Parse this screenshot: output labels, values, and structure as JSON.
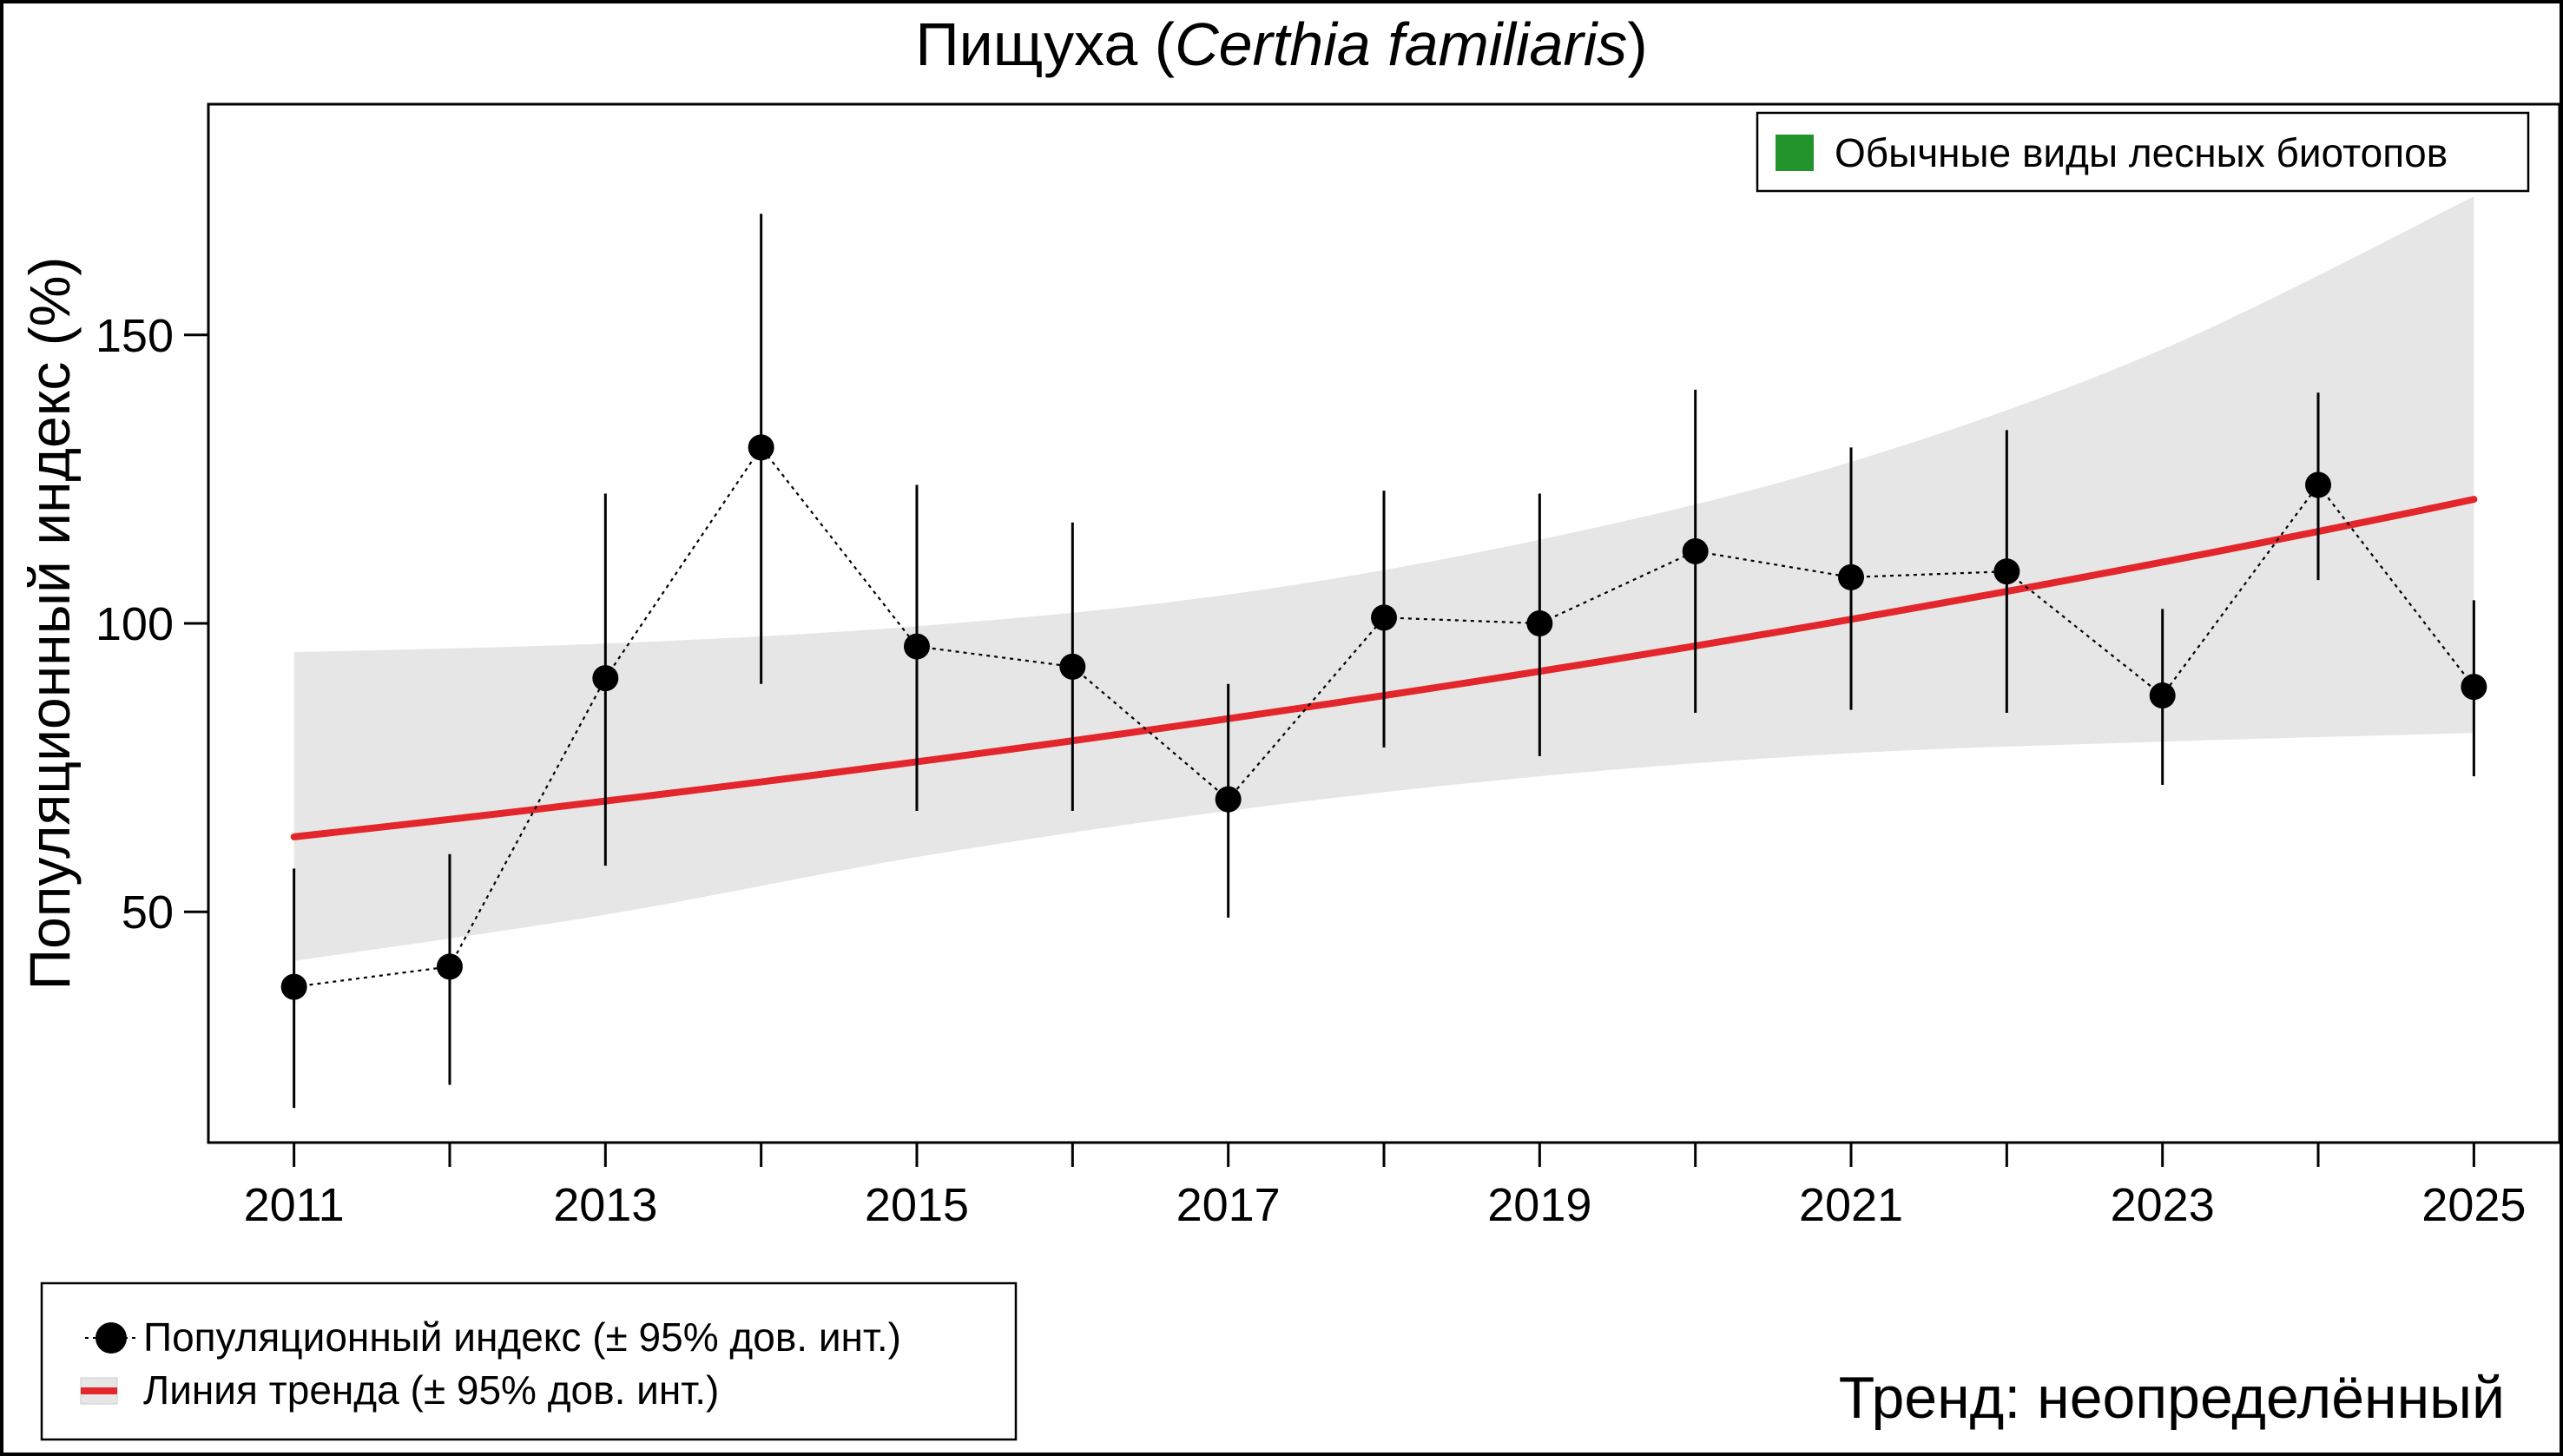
{
  "chart_data": {
    "type": "line",
    "title_prefix": "Пищуха (",
    "title_species": "Certhia familiaris",
    "title_suffix": ")",
    "xlabel": "",
    "ylabel": "Популяционный индекс (%)",
    "xlim": [
      2010.45,
      2025.55
    ],
    "ylim": [
      10,
      190
    ],
    "x_ticks": [
      2011,
      2012,
      2013,
      2014,
      2015,
      2016,
      2017,
      2018,
      2019,
      2020,
      2021,
      2022,
      2023,
      2024,
      2025
    ],
    "x_tick_labels": [
      "2011",
      "",
      "2013",
      "",
      "2015",
      "",
      "2017",
      "",
      "2019",
      "",
      "2021",
      "",
      "2023",
      "",
      "2025"
    ],
    "y_ticks": [
      50,
      100,
      150
    ],
    "y_tick_labels": [
      "50",
      "100",
      "150"
    ],
    "index_series": {
      "name": "Популяционный индекс (± 95% дов. инт.)",
      "x": [
        2011,
        2012,
        2013,
        2014,
        2015,
        2016,
        2017,
        2018,
        2019,
        2020,
        2021,
        2022,
        2023,
        2024,
        2025
      ],
      "values": [
        37,
        40.5,
        90.5,
        130.5,
        96,
        92.5,
        69.5,
        101,
        100,
        112.5,
        108,
        109,
        87.5,
        124,
        89
      ],
      "ci_low": [
        16,
        20,
        58,
        89.5,
        67.5,
        67.5,
        49,
        78.5,
        77,
        84.5,
        85,
        84.5,
        72,
        107.5,
        73.5
      ],
      "ci_high": [
        57.5,
        60,
        122.5,
        171,
        124,
        117.5,
        89.5,
        123,
        122.5,
        140.5,
        130.5,
        133.5,
        102.5,
        140,
        104
      ]
    },
    "trend_series": {
      "name": "Линия тренда (± 95% дов. инт.)",
      "x_start": 2011,
      "x_end": 2025,
      "start_value": 63,
      "end_value": 121.5,
      "band_x": [
        2011,
        2013,
        2015,
        2017,
        2019,
        2021,
        2023,
        2025
      ],
      "band_low": [
        41.5,
        49.5,
        59.5,
        67.5,
        73.5,
        77.5,
        79.5,
        81
      ],
      "band_high": [
        95,
        96.5,
        99.5,
        105,
        114.5,
        128,
        147.5,
        174
      ]
    },
    "inner_legend": [
      {
        "label": "Обычные виды лесных биотопов",
        "color": "#22942b"
      }
    ],
    "legend_position": "top-right",
    "bottom_legend_position": "bottom-left",
    "trend_label": "Тренд: неопределённый",
    "colors": {
      "trend": "#e3262b",
      "band": "#e6e6e6",
      "points": "#000000"
    }
  }
}
